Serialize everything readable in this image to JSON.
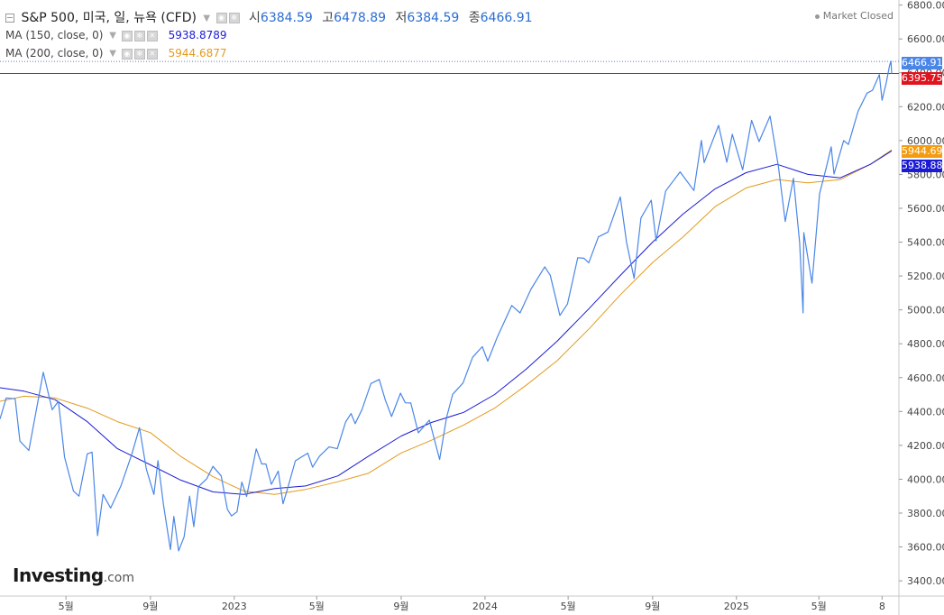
{
  "header": {
    "symbol": "S&P 500, 미국, 일, 뉴욕 (CFD)",
    "open_label": "시",
    "open": "6384.59",
    "high_label": "고",
    "high": "6478.89",
    "low_label": "저",
    "low": "6384.59",
    "close_label": "종",
    "close": "6466.91"
  },
  "indicators": [
    {
      "label": "MA (150, close, 0)",
      "value": "5938.8789",
      "color": "#1b1bd6"
    },
    {
      "label": "MA (200, close, 0)",
      "value": "5944.6877",
      "color": "#e39a1c"
    }
  ],
  "status": "Market Closed",
  "logo": {
    "brand": "Investing",
    "tld": ".com"
  },
  "price_tags": [
    {
      "text": "6466.91",
      "color": "#4a86e8"
    },
    {
      "text": "6395.75",
      "color": "#e0141e"
    },
    {
      "text": "5944.69",
      "color": "#f39c12"
    },
    {
      "text": "5938.88",
      "color": "#1b1bd6"
    }
  ],
  "chart_data": {
    "type": "line",
    "title": "S&P 500",
    "y_ticks": [
      3400,
      3600,
      3800,
      4000,
      4200,
      4400,
      4600,
      4800,
      5000,
      5200,
      5400,
      5600,
      5800,
      6000,
      6200,
      6400,
      6600,
      6800
    ],
    "y_tick_labels": [
      "3400.00",
      "3600.00",
      "3800.00",
      "4000.00",
      "4200.00",
      "4400.00",
      "4600.00",
      "4800.00",
      "5000.00",
      "5200.00",
      "5400.00",
      "5600.00",
      "5800.00",
      "6000.00",
      "6200.00",
      "6400.00",
      "6600.00",
      "6800.00"
    ],
    "ylim": [
      3310,
      6830
    ],
    "x_range": [
      "2022-01-25",
      "2025-08-15"
    ],
    "x_ticks": [
      {
        "date": "2022-05-01",
        "label": "5월"
      },
      {
        "date": "2022-09-01",
        "label": "9월"
      },
      {
        "date": "2023-01-01",
        "label": "2023"
      },
      {
        "date": "2023-05-01",
        "label": "5월"
      },
      {
        "date": "2023-09-01",
        "label": "9월"
      },
      {
        "date": "2024-01-01",
        "label": "2024"
      },
      {
        "date": "2024-05-01",
        "label": "5월"
      },
      {
        "date": "2024-09-01",
        "label": "9월"
      },
      {
        "date": "2025-01-01",
        "label": "2025"
      },
      {
        "date": "2025-05-01",
        "label": "5월"
      },
      {
        "date": "2025-08-01",
        "label": "8"
      }
    ],
    "horizontal_line": 6395.75,
    "dotted_line": 6466.91,
    "series": [
      {
        "name": "S&P 500",
        "color": "#4a86e8",
        "points": [
          [
            "2022-01-25",
            4356
          ],
          [
            "2022-02-03",
            4480
          ],
          [
            "2022-02-16",
            4475
          ],
          [
            "2022-02-23",
            4225
          ],
          [
            "2022-03-08",
            4170
          ],
          [
            "2022-03-29",
            4631
          ],
          [
            "2022-04-11",
            4410
          ],
          [
            "2022-04-20",
            4460
          ],
          [
            "2022-04-29",
            4130
          ],
          [
            "2022-05-12",
            3930
          ],
          [
            "2022-05-20",
            3900
          ],
          [
            "2022-06-01",
            4150
          ],
          [
            "2022-06-08",
            4160
          ],
          [
            "2022-06-16",
            3667
          ],
          [
            "2022-06-24",
            3910
          ],
          [
            "2022-07-05",
            3830
          ],
          [
            "2022-07-20",
            3960
          ],
          [
            "2022-08-05",
            4150
          ],
          [
            "2022-08-16",
            4305
          ],
          [
            "2022-08-26",
            4060
          ],
          [
            "2022-09-06",
            3910
          ],
          [
            "2022-09-12",
            4110
          ],
          [
            "2022-09-20",
            3850
          ],
          [
            "2022-09-30",
            3585
          ],
          [
            "2022-10-05",
            3780
          ],
          [
            "2022-10-12",
            3577
          ],
          [
            "2022-10-20",
            3660
          ],
          [
            "2022-10-28",
            3900
          ],
          [
            "2022-11-03",
            3720
          ],
          [
            "2022-11-10",
            3956
          ],
          [
            "2022-11-22",
            4003
          ],
          [
            "2022-12-01",
            4076
          ],
          [
            "2022-12-13",
            4020
          ],
          [
            "2022-12-22",
            3822
          ],
          [
            "2022-12-28",
            3783
          ],
          [
            "2023-01-05",
            3808
          ],
          [
            "2023-01-12",
            3983
          ],
          [
            "2023-01-19",
            3898
          ],
          [
            "2023-02-02",
            4179
          ],
          [
            "2023-02-10",
            4090
          ],
          [
            "2023-02-16",
            4090
          ],
          [
            "2023-02-24",
            3970
          ],
          [
            "2023-03-06",
            4048
          ],
          [
            "2023-03-13",
            3855
          ],
          [
            "2023-03-20",
            3951
          ],
          [
            "2023-03-31",
            4109
          ],
          [
            "2023-04-18",
            4154
          ],
          [
            "2023-04-25",
            4071
          ],
          [
            "2023-05-05",
            4136
          ],
          [
            "2023-05-19",
            4191
          ],
          [
            "2023-05-31",
            4180
          ],
          [
            "2023-06-12",
            4338
          ],
          [
            "2023-06-20",
            4388
          ],
          [
            "2023-06-26",
            4328
          ],
          [
            "2023-07-06",
            4411
          ],
          [
            "2023-07-19",
            4565
          ],
          [
            "2023-07-31",
            4589
          ],
          [
            "2023-08-09",
            4467
          ],
          [
            "2023-08-18",
            4370
          ],
          [
            "2023-08-31",
            4508
          ],
          [
            "2023-09-07",
            4451
          ],
          [
            "2023-09-15",
            4450
          ],
          [
            "2023-09-26",
            4274
          ],
          [
            "2023-10-12",
            4349
          ],
          [
            "2023-10-20",
            4224
          ],
          [
            "2023-10-27",
            4117
          ],
          [
            "2023-11-06",
            4365
          ],
          [
            "2023-11-15",
            4502
          ],
          [
            "2023-11-30",
            4568
          ],
          [
            "2023-12-14",
            4720
          ],
          [
            "2023-12-28",
            4783
          ],
          [
            "2024-01-05",
            4697
          ],
          [
            "2024-01-19",
            4840
          ],
          [
            "2024-02-09",
            5026
          ],
          [
            "2024-02-21",
            4982
          ],
          [
            "2024-03-08",
            5123
          ],
          [
            "2024-03-28",
            5254
          ],
          [
            "2024-04-05",
            5204
          ],
          [
            "2024-04-19",
            4967
          ],
          [
            "2024-04-30",
            5035
          ],
          [
            "2024-05-15",
            5308
          ],
          [
            "2024-05-24",
            5305
          ],
          [
            "2024-05-31",
            5278
          ],
          [
            "2024-06-14",
            5431
          ],
          [
            "2024-06-28",
            5460
          ],
          [
            "2024-07-16",
            5667
          ],
          [
            "2024-07-25",
            5399
          ],
          [
            "2024-08-05",
            5186
          ],
          [
            "2024-08-15",
            5543
          ],
          [
            "2024-08-30",
            5648
          ],
          [
            "2024-09-06",
            5408
          ],
          [
            "2024-09-20",
            5702
          ],
          [
            "2024-10-11",
            5815
          ],
          [
            "2024-10-31",
            5705
          ],
          [
            "2024-11-11",
            6001
          ],
          [
            "2024-11-15",
            5870
          ],
          [
            "2024-12-06",
            6090
          ],
          [
            "2024-12-18",
            5872
          ],
          [
            "2024-12-26",
            6037
          ],
          [
            "2025-01-10",
            5827
          ],
          [
            "2025-01-23",
            6119
          ],
          [
            "2025-02-03",
            5994
          ],
          [
            "2025-02-19",
            6144
          ],
          [
            "2025-03-03",
            5849
          ],
          [
            "2025-03-13",
            5522
          ],
          [
            "2025-03-25",
            5777
          ],
          [
            "2025-04-03",
            5396
          ],
          [
            "2025-04-08",
            4982
          ],
          [
            "2025-04-09",
            5456
          ],
          [
            "2025-04-21",
            5158
          ],
          [
            "2025-05-02",
            5686
          ],
          [
            "2025-05-12",
            5844
          ],
          [
            "2025-05-19",
            5963
          ],
          [
            "2025-05-23",
            5802
          ],
          [
            "2025-06-06",
            6000
          ],
          [
            "2025-06-13",
            5977
          ],
          [
            "2025-06-27",
            6173
          ],
          [
            "2025-07-10",
            6280
          ],
          [
            "2025-07-18",
            6297
          ],
          [
            "2025-07-28",
            6389
          ],
          [
            "2025-08-01",
            6238
          ],
          [
            "2025-08-07",
            6340
          ],
          [
            "2025-08-12",
            6445
          ],
          [
            "2025-08-14",
            6468
          ],
          [
            "2025-08-15",
            6395
          ]
        ]
      },
      {
        "name": "MA (150, close, 0)",
        "color": "#1b1bd6",
        "points": [
          [
            "2022-01-25",
            4540
          ],
          [
            "2022-03-01",
            4520
          ],
          [
            "2022-04-15",
            4470
          ],
          [
            "2022-06-01",
            4340
          ],
          [
            "2022-07-15",
            4180
          ],
          [
            "2022-09-01",
            4085
          ],
          [
            "2022-10-15",
            3995
          ],
          [
            "2022-12-01",
            3925
          ],
          [
            "2023-01-15",
            3910
          ],
          [
            "2023-03-01",
            3945
          ],
          [
            "2023-04-15",
            3960
          ],
          [
            "2023-06-01",
            4020
          ],
          [
            "2023-07-15",
            4135
          ],
          [
            "2023-09-01",
            4255
          ],
          [
            "2023-10-15",
            4335
          ],
          [
            "2023-12-01",
            4395
          ],
          [
            "2024-01-15",
            4500
          ],
          [
            "2024-03-01",
            4650
          ],
          [
            "2024-04-15",
            4815
          ],
          [
            "2024-06-01",
            5010
          ],
          [
            "2024-07-15",
            5200
          ],
          [
            "2024-09-01",
            5400
          ],
          [
            "2024-10-15",
            5565
          ],
          [
            "2024-12-01",
            5715
          ],
          [
            "2025-01-15",
            5810
          ],
          [
            "2025-03-01",
            5860
          ],
          [
            "2025-04-15",
            5800
          ],
          [
            "2025-06-01",
            5780
          ],
          [
            "2025-07-15",
            5860
          ],
          [
            "2025-08-15",
            5939
          ]
        ]
      },
      {
        "name": "MA (200, close, 0)",
        "color": "#e39a1c",
        "points": [
          [
            "2022-01-25",
            4460
          ],
          [
            "2022-03-01",
            4490
          ],
          [
            "2022-04-15",
            4480
          ],
          [
            "2022-06-01",
            4420
          ],
          [
            "2022-07-15",
            4340
          ],
          [
            "2022-09-01",
            4275
          ],
          [
            "2022-10-15",
            4135
          ],
          [
            "2022-12-01",
            4015
          ],
          [
            "2023-01-15",
            3930
          ],
          [
            "2023-03-01",
            3910
          ],
          [
            "2023-04-15",
            3940
          ],
          [
            "2023-06-01",
            3985
          ],
          [
            "2023-07-15",
            4035
          ],
          [
            "2023-09-01",
            4155
          ],
          [
            "2023-10-15",
            4230
          ],
          [
            "2023-12-01",
            4320
          ],
          [
            "2024-01-15",
            4420
          ],
          [
            "2024-03-01",
            4555
          ],
          [
            "2024-04-15",
            4700
          ],
          [
            "2024-06-01",
            4890
          ],
          [
            "2024-07-15",
            5085
          ],
          [
            "2024-09-01",
            5280
          ],
          [
            "2024-10-15",
            5430
          ],
          [
            "2024-12-01",
            5610
          ],
          [
            "2025-01-15",
            5720
          ],
          [
            "2025-03-01",
            5770
          ],
          [
            "2025-04-15",
            5750
          ],
          [
            "2025-06-01",
            5770
          ],
          [
            "2025-07-15",
            5860
          ],
          [
            "2025-08-15",
            5945
          ]
        ]
      }
    ]
  }
}
